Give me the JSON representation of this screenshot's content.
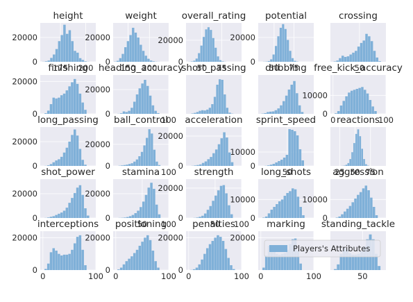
{
  "chart_data": {
    "type": "histogram-grid",
    "rows": 5,
    "cols": 5,
    "colors": {
      "bar": "#7fb0d8",
      "panel": "#eaeaf2",
      "grid": "#ffffff",
      "text": "#262626"
    },
    "legend": {
      "label": "Players's Attributes",
      "placement": "right"
    },
    "subplots": [
      {
        "title": "height",
        "xlim": [
          155,
          210
        ],
        "ylim": [
          0,
          32000
        ],
        "bin_start": 157,
        "bin_width": 2.6,
        "counts": [
          100,
          400,
          1000,
          3200,
          6000,
          10500,
          17000,
          22000,
          30500,
          23000,
          26000,
          17000,
          9000,
          7500,
          3000,
          1500,
          400,
          100
        ],
        "xticks": [
          {
            "v": 175,
            "label": "175"
          },
          {
            "v": 200,
            "label": "200"
          }
        ],
        "yticks": [
          {
            "v": 0,
            "label": "0"
          },
          {
            "v": 20000,
            "label": "20000"
          }
        ]
      },
      {
        "title": "weight",
        "xlim": [
          115,
          245
        ],
        "ylim": [
          0,
          32000
        ],
        "bin_start": 117,
        "bin_width": 6,
        "counts": [
          200,
          800,
          3000,
          6500,
          12000,
          17000,
          22000,
          28000,
          24000,
          20000,
          14000,
          9000,
          5000,
          2500,
          1000,
          400,
          150,
          60
        ],
        "xticks": [
          {
            "v": 150,
            "label": "150"
          },
          {
            "v": 200,
            "label": "200"
          }
        ],
        "yticks": [
          {
            "v": 0,
            "label": "0"
          },
          {
            "v": 20000,
            "label": "20000"
          }
        ]
      },
      {
        "title": "overall_rating",
        "xlim": [
          30,
          100
        ],
        "ylim": [
          0,
          36000
        ],
        "bin_start": 33,
        "bin_width": 3,
        "counts": [
          100,
          300,
          1000,
          3000,
          8000,
          15000,
          23000,
          30000,
          32000,
          29500,
          22000,
          13000,
          5000,
          1500,
          400,
          100
        ],
        "xticks": [
          {
            "v": 50,
            "label": "50"
          },
          {
            "v": 75,
            "label": "75"
          }
        ],
        "yticks": [
          {
            "v": 0,
            "label": "0"
          },
          {
            "v": 20000,
            "label": "20000"
          }
        ]
      },
      {
        "title": "potential",
        "xlim": [
          30,
          100
        ],
        "ylim": [
          0,
          32000
        ],
        "bin_start": 36,
        "bin_width": 3,
        "counts": [
          100,
          200,
          600,
          2000,
          6000,
          13000,
          21000,
          28000,
          31000,
          27000,
          18000,
          9000,
          3000,
          800,
          200
        ],
        "xticks": [
          {
            "v": 50,
            "label": "50"
          },
          {
            "v": 75,
            "label": "75"
          }
        ],
        "yticks": [
          {
            "v": 0,
            "label": "0"
          },
          {
            "v": 20000,
            "label": "20000"
          }
        ]
      },
      {
        "title": "crossing",
        "xlim": [
          -5,
          100
        ],
        "ylim": [
          0,
          32000
        ],
        "bin_start": 1,
        "bin_width": 5,
        "counts": [
          300,
          1000,
          3000,
          5000,
          4000,
          4500,
          6000,
          7500,
          9000,
          12500,
          15500,
          17500,
          23000,
          21000,
          17000,
          9000,
          3500,
          500
        ],
        "xticks": [
          {
            "v": 50,
            "label": "50"
          }
        ],
        "yticks": []
      },
      {
        "title": "finishing",
        "xlim": [
          -5,
          100
        ],
        "ylim": [
          0,
          24000
        ],
        "bin_start": 3,
        "bin_width": 5,
        "counts": [
          400,
          2000,
          6000,
          10000,
          9500,
          10000,
          11500,
          12500,
          14500,
          17000,
          19500,
          21500,
          18500,
          12500,
          7000,
          2500
        ],
        "xticks": [],
        "yticks": [
          {
            "v": 0,
            "label": "0"
          },
          {
            "v": 20000,
            "label": "20000"
          }
        ]
      },
      {
        "title": "heading_accuracy",
        "xlim": [
          -5,
          100
        ],
        "ylim": [
          0,
          32000
        ],
        "bin_start": 3,
        "bin_width": 5,
        "counts": [
          100,
          500,
          2000,
          1500,
          2500,
          5000,
          10000,
          16000,
          21000,
          25000,
          28000,
          23000,
          15000,
          7000,
          2500,
          600
        ],
        "xticks": [
          {
            "v": 100,
            "label": "100"
          }
        ],
        "yticks": [
          {
            "v": 0,
            "label": "0"
          },
          {
            "v": 20000,
            "label": "20000"
          }
        ]
      },
      {
        "title": "short_passing",
        "xlim": [
          -5,
          100
        ],
        "ylim": [
          0,
          32000
        ],
        "bin_start": 5,
        "bin_width": 4.7,
        "counts": [
          300,
          800,
          1500,
          2500,
          3000,
          2800,
          3500,
          5000,
          8000,
          14000,
          24000,
          28500,
          28000,
          16000,
          5000,
          1000,
          200
        ],
        "xticks": [],
        "yticks": []
      },
      {
        "title": "dribbling",
        "xlim": [
          -5,
          100
        ],
        "ylim": [
          0,
          32000
        ],
        "bin_start": 1,
        "bin_width": 5,
        "counts": [
          200,
          600,
          1500,
          1800,
          2000,
          3000,
          4500,
          7000,
          10500,
          15000,
          20000,
          24000,
          27000,
          17000,
          7000,
          1500
        ],
        "xticks": [],
        "yticks": []
      },
      {
        "title": "free_kick_accuracy",
        "xlim": [
          -5,
          100
        ],
        "ylim": [
          0,
          21000
        ],
        "bin_start": 3,
        "bin_width": 5,
        "counts": [
          300,
          1500,
          4500,
          7000,
          9500,
          11500,
          12500,
          13000,
          13500,
          14000,
          14500,
          13000,
          11000,
          7500,
          4000,
          1500
        ],
        "xticks": [
          {
            "v": 0,
            "label": "0"
          },
          {
            "v": 100,
            "label": "100"
          }
        ],
        "yticks": [
          {
            "v": 0,
            "label": "0"
          },
          {
            "v": 10000,
            "label": "10000"
          }
        ]
      },
      {
        "title": "long_passing",
        "xlim": [
          -5,
          100
        ],
        "ylim": [
          0,
          32000
        ],
        "bin_start": 3,
        "bin_width": 5,
        "counts": [
          100,
          500,
          1500,
          3000,
          4500,
          5500,
          7500,
          11000,
          15000,
          20000,
          25500,
          30000,
          25000,
          14000,
          5000,
          1000
        ],
        "xticks": [],
        "yticks": [
          {
            "v": 0,
            "label": "0"
          },
          {
            "v": 20000,
            "label": "20000"
          }
        ]
      },
      {
        "title": "ball_control",
        "xlim": [
          -5,
          100
        ],
        "ylim": [
          0,
          36000
        ],
        "bin_start": 5,
        "bin_width": 4.7,
        "counts": [
          200,
          500,
          800,
          1200,
          1800,
          2500,
          4000,
          6000,
          9000,
          13000,
          19000,
          26000,
          34000,
          30000,
          15000,
          4000,
          800
        ],
        "xticks": [
          {
            "v": 100,
            "label": "100"
          }
        ],
        "yticks": [
          {
            "v": 0,
            "label": "0"
          },
          {
            "v": 20000,
            "label": "20000"
          }
        ]
      },
      {
        "title": "acceleration",
        "xlim": [
          -5,
          100
        ],
        "ylim": [
          0,
          26000
        ],
        "bin_start": 5,
        "bin_width": 5,
        "counts": [
          100,
          300,
          600,
          1000,
          2000,
          3000,
          4500,
          6000,
          8500,
          11000,
          14500,
          18500,
          22500,
          19000,
          9000,
          2500
        ],
        "xticks": [],
        "yticks": [
          {
            "v": 0,
            "label": "0"
          },
          {
            "v": 20000,
            "label": "20000"
          }
        ]
      },
      {
        "title": "sprint_speed",
        "xlim": [
          -5,
          100
        ],
        "ylim": [
          0,
          28000
        ],
        "bin_start": 7,
        "bin_width": 5,
        "counts": [
          100,
          400,
          900,
          1500,
          2500,
          3500,
          4500,
          6000,
          8000,
          26500,
          26000,
          25000,
          22000,
          12000,
          4000
        ],
        "xticks": [
          {
            "v": 50,
            "label": "50"
          }
        ],
        "yticks": [
          {
            "v": 0,
            "label": "0"
          },
          {
            "v": 10000,
            "label": "10000"
          }
        ]
      },
      {
        "title": "reactions",
        "xlim": [
          10,
          100
        ],
        "ylim": [
          0,
          34000
        ],
        "bin_start": 28,
        "bin_width": 3.2,
        "counts": [
          100,
          300,
          1000,
          2500,
          6000,
          12000,
          20000,
          28000,
          32000,
          26000,
          15000,
          6000,
          1500,
          300
        ],
        "xticks": [
          {
            "v": 25,
            "label": "25"
          },
          {
            "v": 50,
            "label": "50"
          },
          {
            "v": 75,
            "label": "75"
          }
        ],
        "yticks": []
      },
      {
        "title": "shot_power",
        "xlim": [
          -5,
          100
        ],
        "ylim": [
          0,
          32000
        ],
        "bin_start": 3,
        "bin_width": 5,
        "counts": [
          100,
          400,
          1000,
          1500,
          2500,
          3500,
          4500,
          6000,
          8500,
          12500,
          16500,
          20500,
          25000,
          27000,
          19000,
          8000,
          2000
        ],
        "xticks": [],
        "yticks": [
          {
            "v": 0,
            "label": "0"
          },
          {
            "v": 20000,
            "label": "20000"
          }
        ]
      },
      {
        "title": "stamina",
        "xlim": [
          -5,
          100
        ],
        "ylim": [
          0,
          32000
        ],
        "bin_start": 5,
        "bin_width": 5,
        "counts": [
          100,
          200,
          400,
          800,
          1500,
          2500,
          4000,
          6000,
          9000,
          13500,
          19000,
          25000,
          29000,
          24000,
          11000,
          3000
        ],
        "xticks": [
          {
            "v": 50,
            "label": "50"
          },
          {
            "v": 100,
            "label": "100"
          }
        ],
        "yticks": [
          {
            "v": 0,
            "label": "0"
          },
          {
            "v": 20000,
            "label": "20000"
          }
        ]
      },
      {
        "title": "strength",
        "xlim": [
          -5,
          100
        ],
        "ylim": [
          0,
          26000
        ],
        "bin_start": 9,
        "bin_width": 5,
        "counts": [
          100,
          300,
          800,
          1500,
          3000,
          5500,
          8000,
          11500,
          15000,
          18500,
          21500,
          22000,
          16500,
          8500,
          2500
        ],
        "xticks": [
          {
            "v": 50,
            "label": "50"
          },
          {
            "v": 100,
            "label": "100"
          }
        ],
        "yticks": [
          {
            "v": 0,
            "label": "0"
          },
          {
            "v": 20000,
            "label": "20000"
          }
        ]
      },
      {
        "title": "long_shots",
        "xlim": [
          -5,
          100
        ],
        "ylim": [
          0,
          21000
        ],
        "bin_start": 3,
        "bin_width": 5,
        "counts": [
          200,
          800,
          2500,
          4500,
          6000,
          7500,
          9000,
          10000,
          12000,
          13500,
          14500,
          16000,
          15500,
          11500,
          6000,
          1500
        ],
        "xticks": [],
        "yticks": [
          {
            "v": 0,
            "label": "0"
          },
          {
            "v": 10000,
            "label": "10000"
          }
        ]
      },
      {
        "title": "aggression",
        "xlim": [
          -5,
          100
        ],
        "ylim": [
          0,
          21000
        ],
        "bin_start": 5,
        "bin_width": 5,
        "counts": [
          200,
          800,
          2000,
          3500,
          5000,
          6500,
          8500,
          10500,
          12500,
          14000,
          16000,
          17500,
          15000,
          11000,
          6000,
          1500
        ],
        "xticks": [],
        "yticks": [
          {
            "v": 0,
            "label": "0"
          },
          {
            "v": 10000,
            "label": "10000"
          }
        ]
      },
      {
        "title": "interceptions",
        "xlim": [
          -5,
          100
        ],
        "ylim": [
          0,
          24000
        ],
        "bin_start": 3,
        "bin_width": 5,
        "counts": [
          700,
          4000,
          11000,
          13500,
          12000,
          10000,
          9000,
          9500,
          9500,
          10000,
          12500,
          16500,
          20500,
          21500,
          12500,
          3000
        ],
        "xticks": [
          {
            "v": 0,
            "label": "0"
          },
          {
            "v": 100,
            "label": "100"
          }
        ],
        "yticks": [
          {
            "v": 0,
            "label": "0"
          },
          {
            "v": 20000,
            "label": "20000"
          }
        ]
      },
      {
        "title": "positioning",
        "xlim": [
          -5,
          100
        ],
        "ylim": [
          0,
          24000
        ],
        "bin_start": 3,
        "bin_width": 5,
        "counts": [
          400,
          1500,
          3500,
          5500,
          7000,
          8500,
          10500,
          12500,
          15000,
          17500,
          20000,
          21500,
          18500,
          12000,
          5500,
          1500
        ],
        "xticks": [
          {
            "v": 0,
            "label": "0"
          },
          {
            "v": 100,
            "label": "100"
          }
        ],
        "yticks": [
          {
            "v": 0,
            "label": "0"
          },
          {
            "v": 20000,
            "label": "20000"
          }
        ]
      },
      {
        "title": "penalties",
        "xlim": [
          -5,
          100
        ],
        "ylim": [
          0,
          24000
        ],
        "bin_start": 3,
        "bin_width": 5,
        "counts": [
          100,
          500,
          1500,
          3500,
          6500,
          10000,
          13500,
          16000,
          18000,
          20000,
          21500,
          20500,
          18000,
          13000,
          7500,
          3000,
          600
        ],
        "xticks": [
          {
            "v": 0,
            "label": "0"
          },
          {
            "v": 100,
            "label": "100"
          }
        ],
        "yticks": [
          {
            "v": 0,
            "label": "0"
          },
          {
            "v": 20000,
            "label": "20000"
          }
        ]
      },
      {
        "title": "marking",
        "xlim": [
          -5,
          100
        ],
        "ylim": [
          0,
          24000
        ],
        "bin_start": 3,
        "bin_width": 5,
        "counts": [
          1500,
          9000,
          15000,
          15000,
          12000,
          10000,
          9500,
          10000,
          10500,
          12500,
          16000,
          19000,
          19500,
          12000,
          4000
        ],
        "xticks": [
          {
            "v": 0,
            "label": "0"
          },
          {
            "v": 100,
            "label": "100"
          }
        ],
        "yticks": [
          {
            "v": 20000,
            "label": "20000"
          }
        ]
      },
      {
        "title": "standing_tackle",
        "xlim": [
          -5,
          90
        ],
        "ylim": [
          0,
          24000
        ],
        "bin_start": 1,
        "bin_width": 5,
        "counts": [
          600,
          3500,
          10000,
          13500,
          12500,
          10500,
          9500,
          9500,
          10000,
          11500,
          14500,
          19000,
          22000,
          19000,
          10000,
          2500
        ],
        "xticks": [
          {
            "v": 50,
            "label": "50"
          }
        ],
        "yticks": []
      }
    ]
  }
}
